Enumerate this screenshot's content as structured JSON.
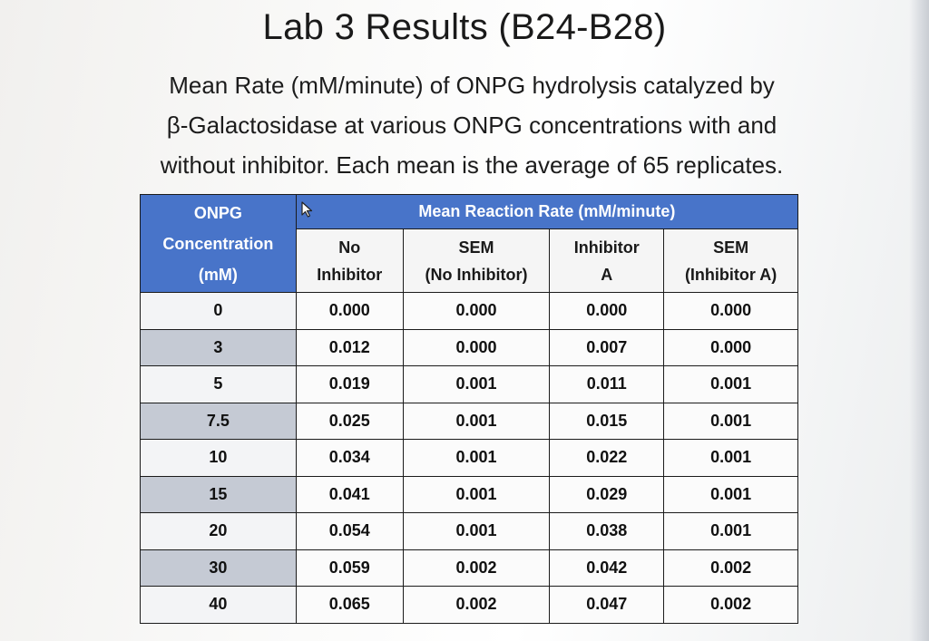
{
  "title": "Lab 3 Results (B24-B28)",
  "subtitle_lines": [
    "Mean Rate (mM/minute) of ONPG hydrolysis catalyzed by",
    "β-Galactosidase at various ONPG concentrations with and",
    "without inhibitor. Each mean is the average of 65 replicates."
  ],
  "table": {
    "concentration_header": [
      "ONPG",
      "Concentration",
      "(mM)"
    ],
    "group_header": "Mean Reaction Rate (mM/minute)",
    "sub_headers": [
      [
        "No",
        "Inhibitor"
      ],
      [
        "SEM",
        "(No Inhibitor)"
      ],
      [
        "Inhibitor",
        "A"
      ],
      [
        "SEM",
        "(Inhibitor A)"
      ]
    ],
    "rows": [
      [
        "0",
        "0.000",
        "0.000",
        "0.000",
        "0.000"
      ],
      [
        "3",
        "0.012",
        "0.000",
        "0.007",
        "0.000"
      ],
      [
        "5",
        "0.019",
        "0.001",
        "0.011",
        "0.001"
      ],
      [
        "7.5",
        "0.025",
        "0.001",
        "0.015",
        "0.001"
      ],
      [
        "10",
        "0.034",
        "0.001",
        "0.022",
        "0.001"
      ],
      [
        "15",
        "0.041",
        "0.001",
        "0.029",
        "0.001"
      ],
      [
        "20",
        "0.054",
        "0.001",
        "0.038",
        "0.001"
      ],
      [
        "30",
        "0.059",
        "0.002",
        "0.042",
        "0.002"
      ],
      [
        "40",
        "0.065",
        "0.002",
        "0.047",
        "0.002"
      ]
    ]
  },
  "colors": {
    "header_blue": "#4874c9",
    "alt_row_gray": "#c5cad4"
  },
  "icons": {
    "cursor": "mouse-pointer-icon"
  }
}
